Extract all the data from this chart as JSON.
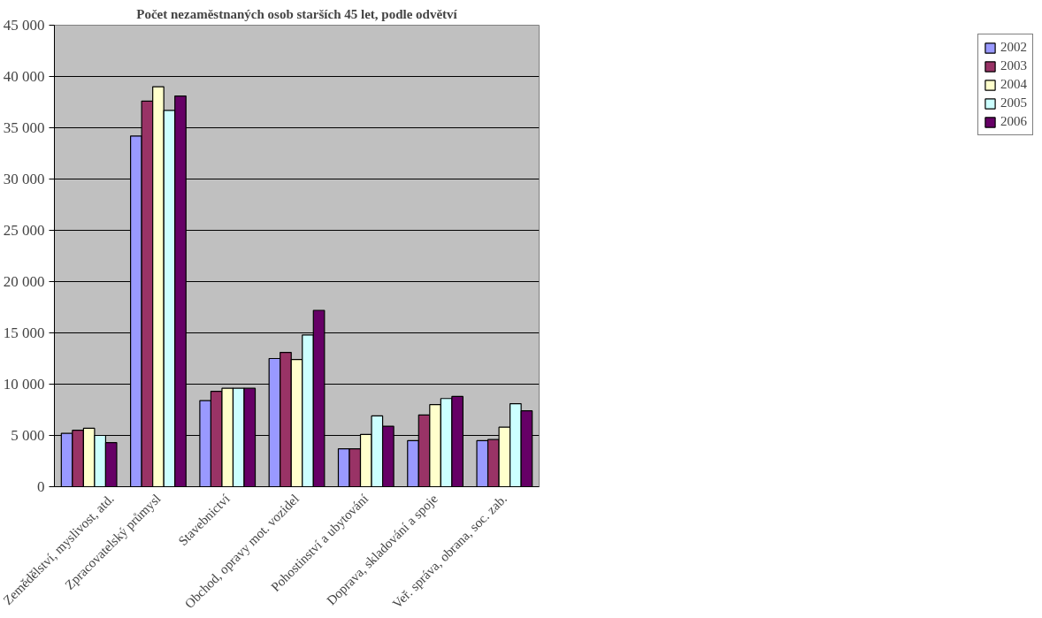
{
  "chart_data": {
    "type": "bar",
    "title": "Počet nezaměstnaných osob starších 45 let, podle odvětví",
    "categories": [
      "Zemědělství, myslivost, atd.",
      "Zpracovatelský průmysl",
      "Stavebnictví",
      "Obchod, opravy mot. vozidel",
      "Pohostinství a ubytování",
      "Doprava, skladování a spoje",
      "Veř. správa, obrana, soc. zab."
    ],
    "series": [
      {
        "name": "2002",
        "color": "#9999ff",
        "values": [
          5200,
          34200,
          8400,
          12500,
          3700,
          4500,
          4500
        ]
      },
      {
        "name": "2003",
        "color": "#993366",
        "values": [
          5500,
          37600,
          9300,
          13100,
          3700,
          7000,
          4600
        ]
      },
      {
        "name": "2004",
        "color": "#ffffcc",
        "values": [
          5700,
          39000,
          9600,
          12400,
          5100,
          8000,
          5800
        ]
      },
      {
        "name": "2005",
        "color": "#ccffff",
        "values": [
          5000,
          36700,
          9600,
          14800,
          6900,
          8600,
          8100
        ]
      },
      {
        "name": "2006",
        "color": "#660066",
        "values": [
          4300,
          38100,
          9600,
          17200,
          5900,
          8800,
          7400
        ]
      }
    ],
    "ylim": [
      0,
      45000
    ],
    "yticks": [
      {
        "value": 0,
        "label": "0"
      },
      {
        "value": 5000,
        "label": "5 000"
      },
      {
        "value": 10000,
        "label": "10 000"
      },
      {
        "value": 15000,
        "label": "15 000"
      },
      {
        "value": 20000,
        "label": "20 000"
      },
      {
        "value": 25000,
        "label": "25 000"
      },
      {
        "value": 30000,
        "label": "30 000"
      },
      {
        "value": 35000,
        "label": "35 000"
      },
      {
        "value": 40000,
        "label": "40 000"
      },
      {
        "value": 45000,
        "label": "45 000"
      }
    ],
    "grid": "y",
    "legend": "right"
  }
}
